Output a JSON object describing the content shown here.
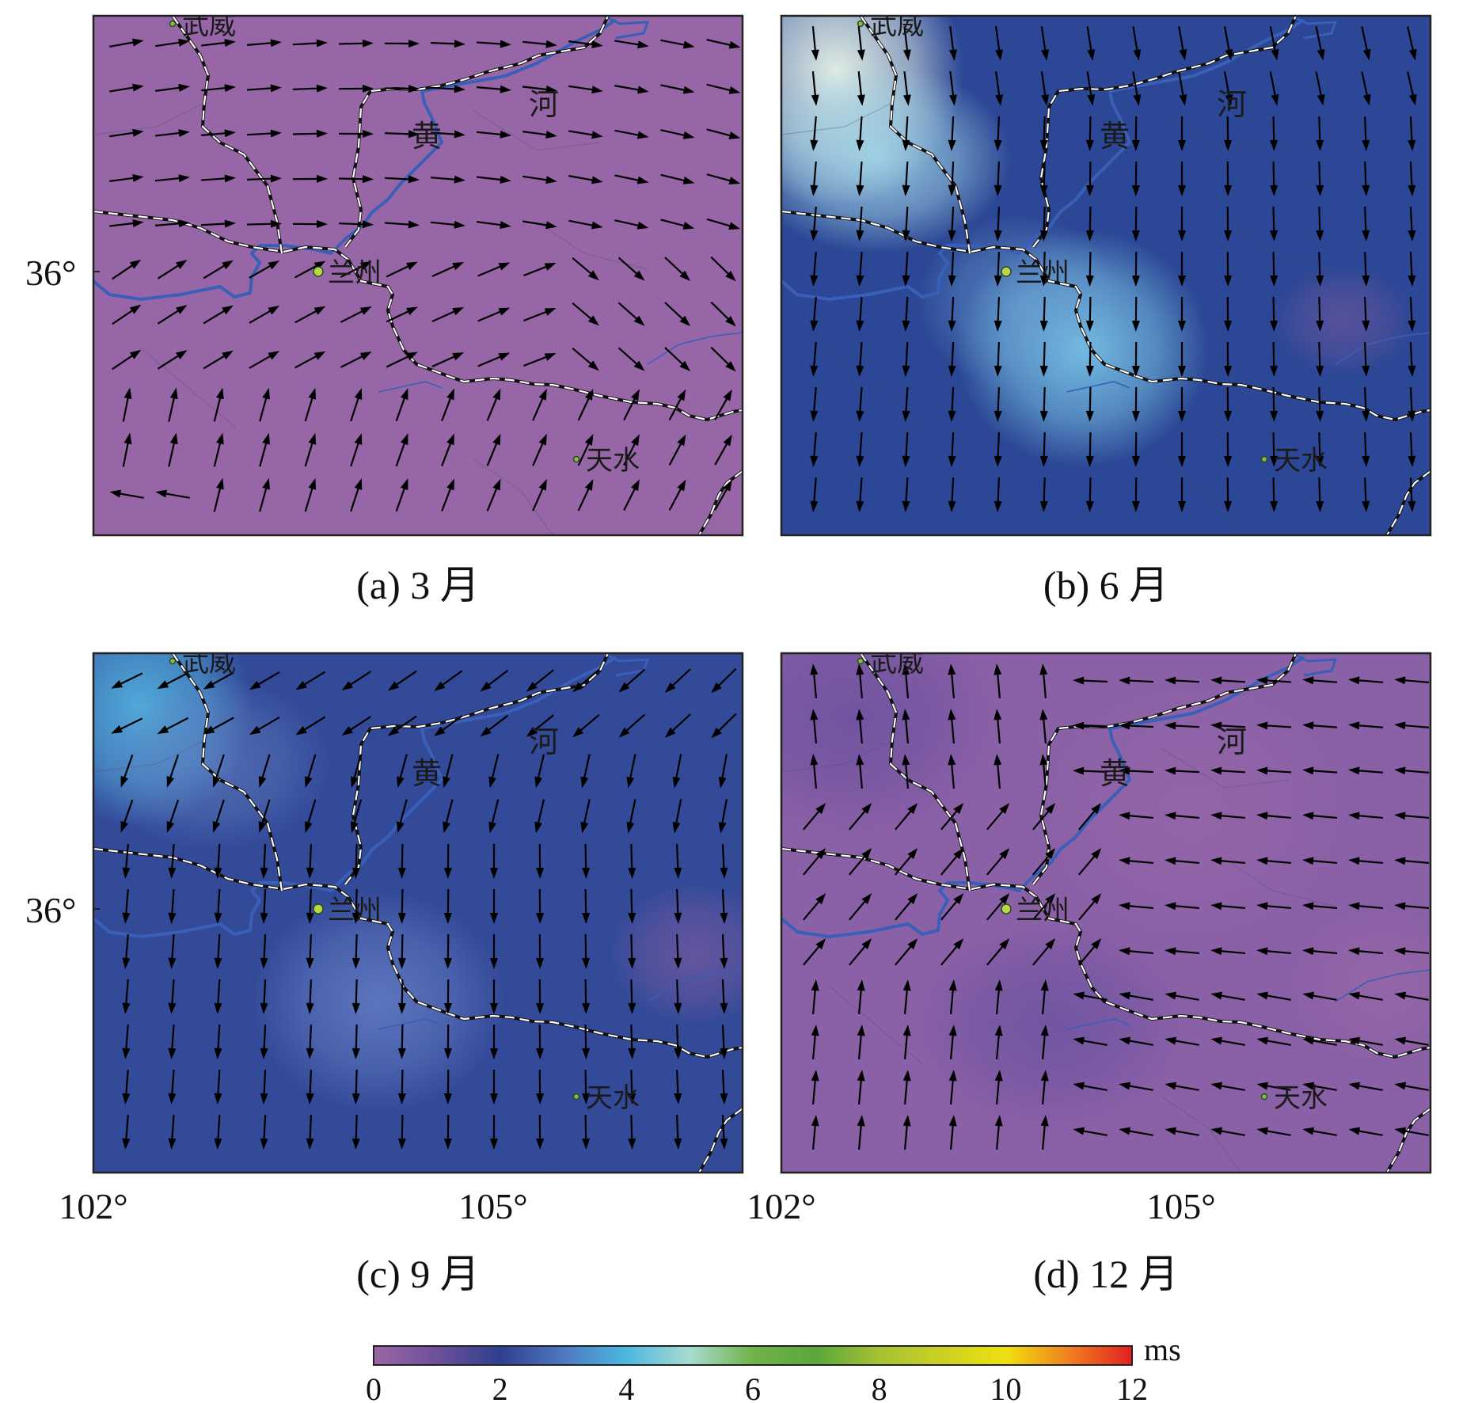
{
  "panels": [
    {
      "id": "a",
      "caption": "(a) 3 月",
      "mode": "mar",
      "show_lat": true,
      "show_lon": false
    },
    {
      "id": "b",
      "caption": "(b) 6 月",
      "mode": "jun",
      "show_lat": false,
      "show_lon": false
    },
    {
      "id": "c",
      "caption": "(c) 9 月",
      "mode": "sep",
      "show_lat": true,
      "show_lon": true
    },
    {
      "id": "d",
      "caption": "(d) 12 月",
      "mode": "dec",
      "show_lat": false,
      "show_lon": true
    }
  ],
  "cities": {
    "wuwei": "武威",
    "lanzhou": "兰州",
    "tianshui": "天水"
  },
  "river": {
    "char1": "黄",
    "char2": "河"
  },
  "lat_label": "36°",
  "lon_labels": [
    "102°",
    "105°"
  ],
  "colorbar": {
    "unit": "ms",
    "ticks": [
      "0",
      "2",
      "4",
      "6",
      "8",
      "10",
      "12"
    ],
    "range": [
      0,
      12
    ],
    "stops": [
      {
        "v": 0,
        "c": "#9a66a6"
      },
      {
        "v": 1,
        "c": "#6e4f9a"
      },
      {
        "v": 2,
        "c": "#2f3f8f"
      },
      {
        "v": 3,
        "c": "#4f78c2"
      },
      {
        "v": 4,
        "c": "#4cb8e0"
      },
      {
        "v": 5,
        "c": "#a6dcd0"
      },
      {
        "v": 6,
        "c": "#70b34a"
      },
      {
        "v": 7,
        "c": "#5aa63c"
      },
      {
        "v": 8,
        "c": "#a6c234"
      },
      {
        "v": 10,
        "c": "#f0e010"
      },
      {
        "v": 11,
        "c": "#f08020"
      },
      {
        "v": 12,
        "c": "#e02020"
      }
    ]
  }
}
